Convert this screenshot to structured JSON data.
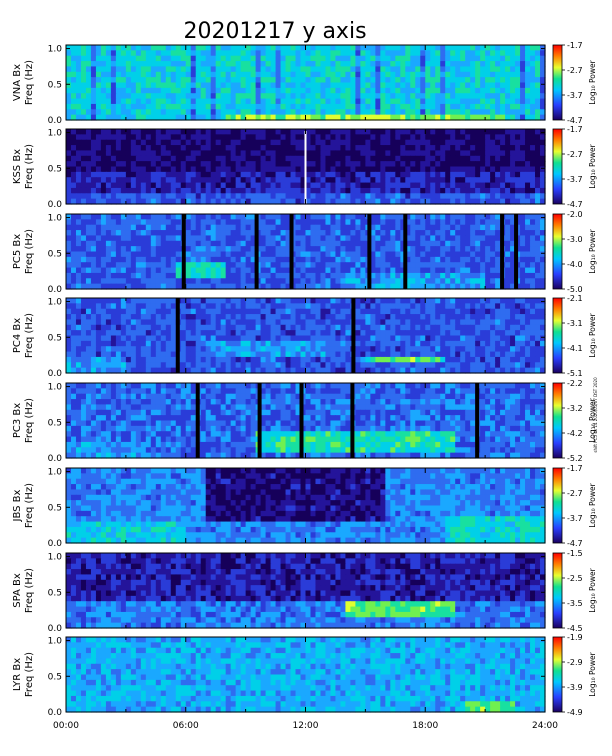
{
  "chart_data": {
    "type": "heatmap",
    "title": "20201217 y axis",
    "stamp": "shift PC5 4k 14 2020/05/07 DST 2020",
    "colorbar_label": "Log₁₀ Power",
    "x": {
      "range": [
        "00:00",
        "24:00"
      ],
      "tick_labels": [
        "00:00",
        "06:00",
        "12:00",
        "18:00",
        "24:00"
      ]
    },
    "y": {
      "label": "Freq (Hz)",
      "range": [
        0,
        1.05
      ],
      "tick_labels": [
        "0.0",
        "0.5",
        "1.0"
      ]
    },
    "panels": [
      {
        "station": "VNA Bx",
        "colorbar_ticks": [
          "-1.7",
          "-2.7",
          "-3.7",
          "-4.7"
        ],
        "gaps_hours": [],
        "bright_vertical_lines_hours": []
      },
      {
        "station": "KSS Bx",
        "colorbar_ticks": [
          "-1.7",
          "-2.7",
          "-3.7",
          "-4.7"
        ],
        "gaps_hours": [],
        "bright_vertical_lines_hours": [
          12.0
        ]
      },
      {
        "station": "PC5 Bx",
        "colorbar_ticks": [
          "-2.0",
          "-3.0",
          "-4.0",
          "-5.0"
        ],
        "gaps_hours": [
          5.9,
          9.55,
          11.3,
          15.2,
          17.0,
          21.85,
          22.55
        ]
      },
      {
        "station": "PC4 Bx",
        "colorbar_ticks": [
          "-2.1",
          "-3.1",
          "-4.1",
          "-5.1"
        ],
        "gaps_hours": [
          5.6,
          14.4
        ]
      },
      {
        "station": "PC3 Bx",
        "colorbar_ticks": [
          "-2.2",
          "-3.2",
          "-4.2",
          "-5.2"
        ],
        "gaps_hours": [
          6.6,
          9.7,
          11.8,
          14.35,
          20.6
        ]
      },
      {
        "station": "JBS Bx",
        "colorbar_ticks": [
          "-1.7",
          "-2.7",
          "-3.7",
          "-4.7"
        ],
        "gaps_hours": []
      },
      {
        "station": "SPA Bx",
        "colorbar_ticks": [
          "-1.5",
          "-2.5",
          "-3.5",
          "-4.5"
        ],
        "gaps_hours": []
      },
      {
        "station": "LYR Bx",
        "colorbar_ticks": [
          "-1.9",
          "-2.9",
          "-3.9",
          "-4.9"
        ],
        "gaps_hours": []
      }
    ]
  }
}
